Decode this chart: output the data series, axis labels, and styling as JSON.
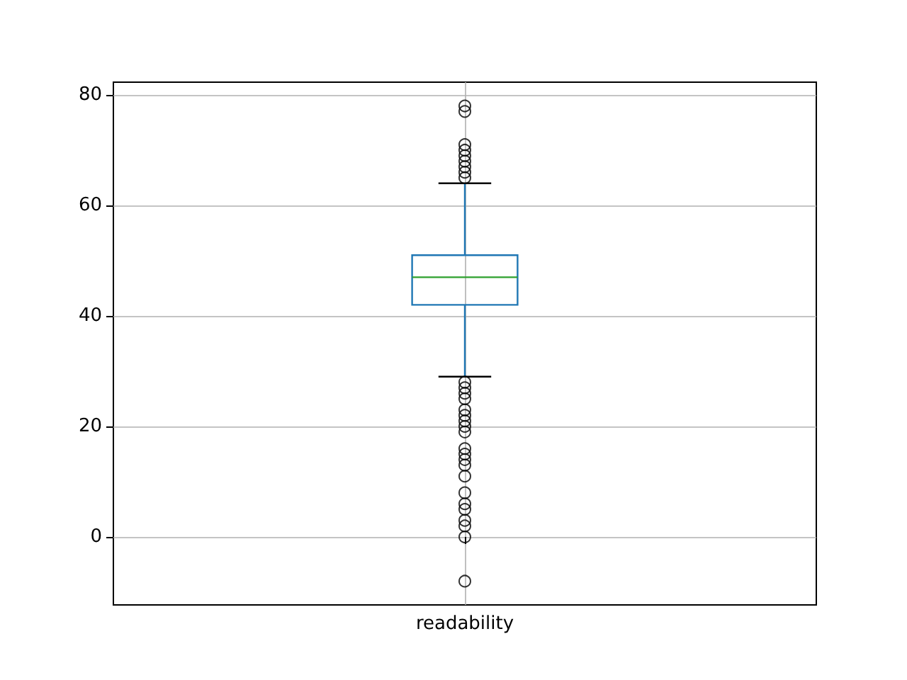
{
  "chart_data": {
    "type": "box",
    "categories": [
      "readability"
    ],
    "color": "#1f77b4",
    "boxes": [
      {
        "low": 29,
        "q1": 42,
        "median": 47,
        "q3": 51,
        "high": 64,
        "outliers": [
          78,
          77,
          71,
          70,
          69,
          68,
          67,
          66,
          65,
          28,
          27,
          26,
          25,
          23,
          22,
          21,
          20,
          19,
          16,
          15,
          14,
          13,
          11,
          8,
          6,
          5,
          3,
          2,
          0,
          -8
        ]
      }
    ],
    "ylim": [
      -12.3,
      82.3
    ],
    "yticks": [
      0,
      20,
      40,
      60,
      80
    ],
    "grid": true,
    "marker": "circle"
  }
}
